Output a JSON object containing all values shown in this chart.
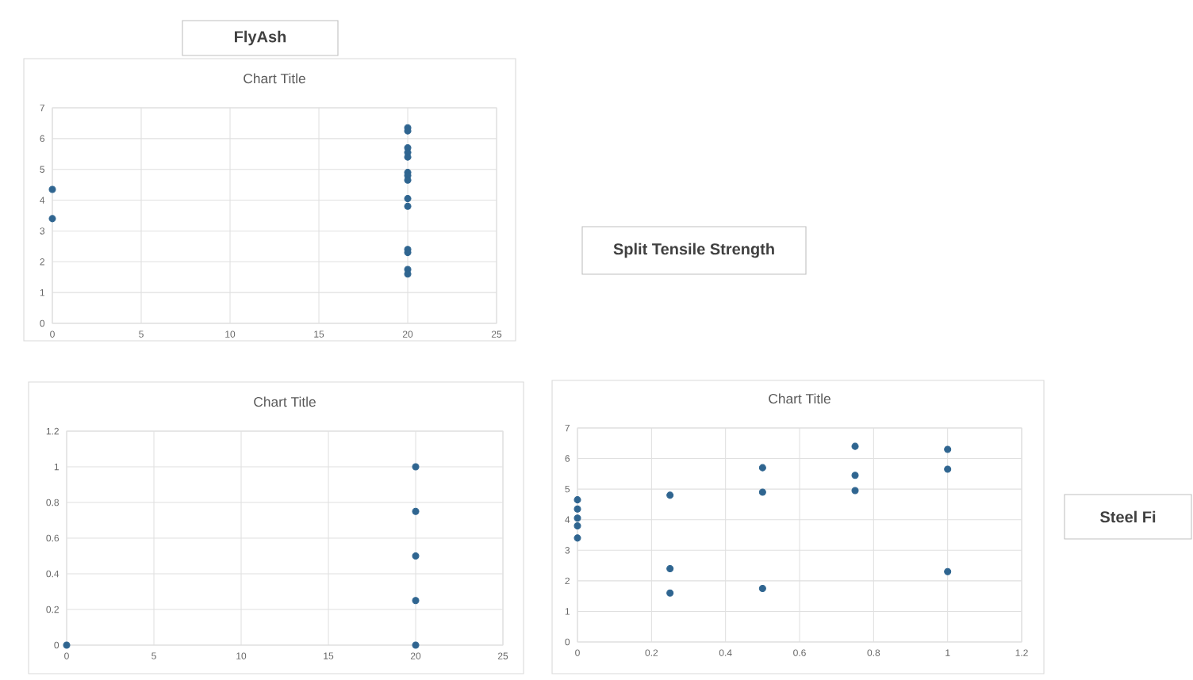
{
  "chart_data": [
    {
      "type": "other",
      "title": "FlyAsh"
    },
    {
      "type": "scatter",
      "title": "Chart Title",
      "color": "#2f6590",
      "marker": "circle",
      "grid": true,
      "xlim": [
        0,
        25
      ],
      "xticks": [
        0,
        5,
        10,
        15,
        20,
        25
      ],
      "ylim": [
        0,
        7
      ],
      "yticks": [
        0,
        1,
        2,
        3,
        4,
        5,
        6,
        7
      ],
      "x": [
        0,
        0,
        20,
        20,
        20,
        20,
        20,
        20,
        20,
        20,
        20,
        20,
        20,
        20,
        20,
        20
      ],
      "values": [
        4.35,
        3.4,
        6.35,
        6.25,
        5.7,
        5.55,
        5.4,
        4.9,
        4.8,
        4.65,
        4.05,
        3.8,
        2.4,
        2.3,
        1.75,
        1.6
      ]
    },
    {
      "type": "other",
      "title": "Split Tensile Strength"
    },
    {
      "type": "scatter",
      "title": "Chart Title",
      "color": "#2f6590",
      "marker": "circle",
      "grid": true,
      "xlim": [
        0,
        25
      ],
      "xticks": [
        0,
        5,
        10,
        15,
        20,
        25
      ],
      "ylim": [
        0,
        1.2
      ],
      "yticks": [
        0,
        0.2,
        0.4,
        0.6,
        0.8,
        1,
        1.2
      ],
      "x": [
        0,
        20,
        20,
        20,
        20,
        20
      ],
      "values": [
        0,
        1,
        0.75,
        0.5,
        0.25,
        0
      ]
    },
    {
      "type": "scatter",
      "title": "Chart Title",
      "color": "#2f6590",
      "marker": "circle",
      "grid": true,
      "xlim": [
        0,
        1.2
      ],
      "xticks": [
        0,
        0.2,
        0.4,
        0.6,
        0.8,
        1,
        1.2
      ],
      "ylim": [
        0,
        7
      ],
      "yticks": [
        0,
        1,
        2,
        3,
        4,
        5,
        6,
        7
      ],
      "x": [
        0,
        0,
        0,
        0,
        0,
        0.25,
        0.25,
        0.25,
        0.5,
        0.5,
        0.5,
        0.75,
        0.75,
        0.75,
        1,
        1,
        1
      ],
      "values": [
        4.65,
        4.35,
        4.05,
        3.8,
        3.4,
        4.8,
        2.4,
        1.6,
        5.7,
        4.9,
        1.75,
        6.4,
        5.45,
        4.95,
        6.3,
        5.65,
        2.3
      ]
    },
    {
      "type": "other",
      "title": "Steel Fi"
    }
  ]
}
